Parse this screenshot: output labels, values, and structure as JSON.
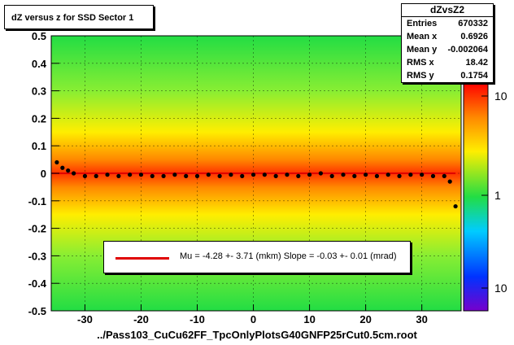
{
  "chart_data": {
    "type": "heatmap",
    "title": "dZ versus  z for SSD Sector 1",
    "xlabel": "",
    "ylabel": "",
    "xlim": [
      -36,
      37
    ],
    "ylim": [
      -0.5,
      0.5
    ],
    "x_ticks": [
      -30,
      -20,
      -10,
      0,
      10,
      20,
      30
    ],
    "y_ticks": [
      "-0.5",
      "-0.4",
      "-0.3",
      "-0.2",
      "-0.1",
      "0",
      "0.1",
      "0.2",
      "0.3",
      "0.4",
      "0.5"
    ],
    "grid": true,
    "colorbar_labels": [
      "10",
      "1",
      "10"
    ],
    "stats": {
      "name": "dZvsZ2",
      "rows": [
        {
          "label": "Entries",
          "value": "670332"
        },
        {
          "label": "Mean x",
          "value": "0.6926"
        },
        {
          "label": "Mean y",
          "value": "-0.002064"
        },
        {
          "label": "RMS x",
          "value": "18.42"
        },
        {
          "label": "RMS y",
          "value": "0.1754"
        }
      ]
    },
    "legend_text": "Mu =   -4.28 +-  3.71 (mkm) Slope =   -0.03 +-  0.01 (mrad)",
    "fit_line": {
      "color": "#e00000"
    },
    "profile_points": {
      "x": [
        -35,
        -34,
        -33,
        -32,
        -30,
        -28,
        -26,
        -24,
        -22,
        -20,
        -18,
        -16,
        -14,
        -12,
        -10,
        -8,
        -6,
        -4,
        -2,
        0,
        2,
        4,
        6,
        8,
        10,
        12,
        14,
        16,
        18,
        20,
        22,
        24,
        26,
        28,
        30,
        32,
        34,
        35,
        36
      ],
      "y": [
        0.04,
        0.02,
        0.01,
        0.0,
        -0.01,
        -0.01,
        -0.005,
        -0.01,
        -0.005,
        -0.005,
        -0.01,
        -0.01,
        -0.005,
        -0.01,
        -0.01,
        -0.005,
        -0.01,
        -0.005,
        -0.01,
        -0.005,
        -0.005,
        -0.01,
        -0.005,
        -0.01,
        -0.005,
        0.0,
        -0.01,
        -0.005,
        -0.01,
        -0.005,
        -0.01,
        -0.005,
        -0.01,
        -0.005,
        -0.005,
        -0.01,
        -0.01,
        -0.03,
        -0.12
      ]
    }
  },
  "footer": "../Pass103_CuCu62FF_TpcOnlyPlotsG40GNFP25rCut0.5cm.root"
}
